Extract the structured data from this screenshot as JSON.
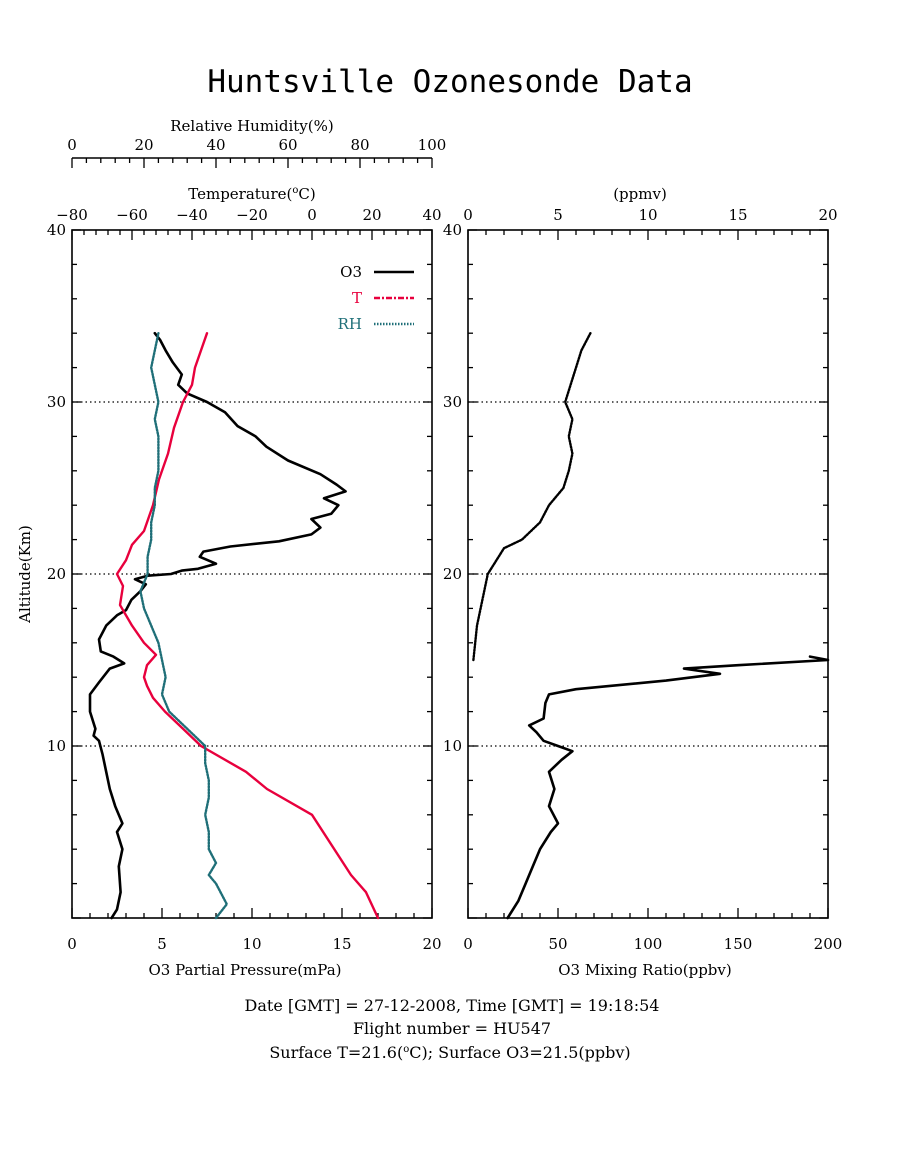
{
  "chart_data": {
    "title": "Huntsville Ozonesonde Data",
    "panels": [
      {
        "id": "left",
        "type": "line",
        "y_axis": {
          "label": "Altitude(Km)",
          "range": [
            0,
            40
          ],
          "ticks": [
            10,
            20,
            30,
            40
          ]
        },
        "x_axes": [
          {
            "position": "bottom",
            "label": "O3 Partial Pressure(mPa)",
            "range": [
              0,
              20
            ],
            "ticks": [
              0,
              5,
              10,
              15,
              20
            ]
          },
          {
            "position": "top",
            "label": "Temperature(°C)",
            "label_prefix": "Temperature(",
            "label_sup": "o",
            "label_suffix": "C)",
            "range": [
              -80,
              40
            ],
            "ticks": [
              -80,
              -60,
              -40,
              -20,
              0,
              20,
              40
            ],
            "tick_labels": [
              "−80",
              "−60",
              "−40",
              "−20",
              "0",
              "20",
              "40"
            ]
          },
          {
            "position": "top2",
            "label": "Relative Humidity(%)",
            "range": [
              0,
              100
            ],
            "ticks": [
              0,
              20,
              40,
              60,
              80,
              100
            ]
          }
        ],
        "gridlines_y": [
          10,
          20,
          30
        ],
        "legend": {
          "placement": "top-right",
          "entries": [
            {
              "name": "O3",
              "color": "#000000",
              "style": "solid"
            },
            {
              "name": "T",
              "color": "#e8003d",
              "style": "dash-dot"
            },
            {
              "name": "RH",
              "color": "#1f6f78",
              "style": "dotted"
            }
          ]
        },
        "series": [
          {
            "name": "O3",
            "axis": "bottom",
            "color": "#000000",
            "points": [
              [
                2.2,
                0
              ],
              [
                2.5,
                0.5
              ],
              [
                2.7,
                1.5
              ],
              [
                2.6,
                3
              ],
              [
                2.8,
                4
              ],
              [
                2.5,
                5
              ],
              [
                2.8,
                5.5
              ],
              [
                2.4,
                6.5
              ],
              [
                2.1,
                7.5
              ],
              [
                1.9,
                8.5
              ],
              [
                1.7,
                9.5
              ],
              [
                1.5,
                10.3
              ],
              [
                1.2,
                10.6
              ],
              [
                1.3,
                11
              ],
              [
                1.0,
                12
              ],
              [
                1.0,
                13
              ],
              [
                1.5,
                13.7
              ],
              [
                2.1,
                14.5
              ],
              [
                2.9,
                14.8
              ],
              [
                2.3,
                15.2
              ],
              [
                1.6,
                15.5
              ],
              [
                1.5,
                16.2
              ],
              [
                1.9,
                17
              ],
              [
                2.5,
                17.6
              ],
              [
                3.0,
                17.9
              ],
              [
                3.3,
                18.5
              ],
              [
                3.8,
                19
              ],
              [
                4.1,
                19.4
              ],
              [
                3.5,
                19.7
              ],
              [
                4.2,
                19.9
              ],
              [
                5.5,
                20.0
              ],
              [
                6.1,
                20.2
              ],
              [
                7.0,
                20.3
              ],
              [
                8.0,
                20.6
              ],
              [
                7.1,
                21.0
              ],
              [
                7.3,
                21.3
              ],
              [
                8.8,
                21.6
              ],
              [
                11.5,
                21.9
              ],
              [
                13.3,
                22.3
              ],
              [
                13.8,
                22.7
              ],
              [
                13.3,
                23.2
              ],
              [
                14.4,
                23.5
              ],
              [
                14.8,
                24.0
              ],
              [
                14.0,
                24.4
              ],
              [
                15.2,
                24.8
              ],
              [
                14.7,
                25.2
              ],
              [
                13.8,
                25.8
              ],
              [
                12.0,
                26.6
              ],
              [
                10.8,
                27.4
              ],
              [
                10.2,
                28.0
              ],
              [
                9.2,
                28.6
              ],
              [
                8.5,
                29.4
              ],
              [
                7.5,
                30.0
              ],
              [
                6.4,
                30.5
              ],
              [
                5.9,
                31.0
              ],
              [
                6.1,
                31.6
              ],
              [
                5.6,
                32.3
              ],
              [
                5.2,
                33.0
              ],
              [
                4.9,
                33.6
              ],
              [
                4.6,
                34.0
              ]
            ]
          },
          {
            "name": "T",
            "axis": "top",
            "color": "#e8003d",
            "points": [
              [
                22,
                0
              ],
              [
                18,
                1.5
              ],
              [
                13,
                2.5
              ],
              [
                0,
                6
              ],
              [
                -15,
                7.5
              ],
              [
                -22,
                8.5
              ],
              [
                -37,
                10
              ],
              [
                -43,
                11
              ],
              [
                -49,
                12
              ],
              [
                -53,
                12.8
              ],
              [
                -55,
                13.5
              ],
              [
                -56,
                14
              ],
              [
                -55,
                14.7
              ],
              [
                -52,
                15.3
              ],
              [
                -56,
                16
              ],
              [
                -60,
                17
              ],
              [
                -64,
                18.2
              ],
              [
                -63,
                19.3
              ],
              [
                -65,
                20
              ],
              [
                -62,
                20.8
              ],
              [
                -60,
                21.7
              ],
              [
                -56,
                22.5
              ],
              [
                -53,
                24
              ],
              [
                -51,
                25.5
              ],
              [
                -48,
                27
              ],
              [
                -46,
                28.5
              ],
              [
                -43,
                30
              ],
              [
                -40,
                31
              ],
              [
                -39,
                32
              ],
              [
                -37,
                33
              ],
              [
                -35,
                34
              ]
            ]
          },
          {
            "name": "RH",
            "axis": "top2",
            "color": "#1f6f78",
            "points": [
              [
                40,
                0
              ],
              [
                43,
                0.8
              ],
              [
                40,
                2
              ],
              [
                38,
                2.5
              ],
              [
                40,
                3.2
              ],
              [
                38,
                4
              ],
              [
                38,
                5
              ],
              [
                37,
                6
              ],
              [
                38,
                7
              ],
              [
                38,
                8
              ],
              [
                37,
                9
              ],
              [
                37,
                10
              ],
              [
                32,
                11
              ],
              [
                27,
                12
              ],
              [
                25,
                13
              ],
              [
                26,
                14
              ],
              [
                25,
                15
              ],
              [
                24,
                16
              ],
              [
                22,
                17
              ],
              [
                20,
                18
              ],
              [
                19,
                19
              ],
              [
                21,
                20
              ],
              [
                21,
                21
              ],
              [
                22,
                22
              ],
              [
                22,
                23
              ],
              [
                23,
                24
              ],
              [
                23,
                25
              ],
              [
                24,
                26
              ],
              [
                24,
                27
              ],
              [
                24,
                28
              ],
              [
                23,
                29
              ],
              [
                24,
                30
              ],
              [
                23,
                31
              ],
              [
                22,
                32
              ],
              [
                23,
                33
              ],
              [
                24,
                34
              ]
            ]
          }
        ]
      },
      {
        "id": "right",
        "type": "line",
        "y_axis": {
          "range": [
            0,
            40
          ],
          "ticks": [
            10,
            20,
            30,
            40
          ]
        },
        "x_axes": [
          {
            "position": "bottom",
            "label": "O3 Mixing Ratio(ppbv)",
            "range": [
              0,
              200
            ],
            "ticks": [
              0,
              50,
              100,
              150,
              200
            ]
          },
          {
            "position": "top",
            "label": "(ppmv)",
            "range": [
              0,
              20
            ],
            "ticks": [
              0,
              5,
              10,
              15,
              20
            ]
          }
        ],
        "gridlines_y": [
          10,
          20,
          30
        ],
        "series": [
          {
            "name": "O3 mixing ratio (ppbv)",
            "axis": "bottom",
            "color": "#000000",
            "points": [
              [
                22,
                0
              ],
              [
                28,
                1
              ],
              [
                32,
                2
              ],
              [
                36,
                3
              ],
              [
                40,
                4
              ],
              [
                46,
                5
              ],
              [
                50,
                5.5
              ],
              [
                45,
                6.5
              ],
              [
                48,
                7.5
              ],
              [
                45,
                8.5
              ],
              [
                52,
                9.2
              ],
              [
                58,
                9.7
              ],
              [
                50,
                10
              ],
              [
                42,
                10.3
              ],
              [
                38,
                10.8
              ],
              [
                34,
                11.2
              ],
              [
                42,
                11.6
              ],
              [
                43,
                12.5
              ],
              [
                45,
                13.0
              ],
              [
                60,
                13.3
              ],
              [
                110,
                13.8
              ],
              [
                140,
                14.2
              ],
              [
                120,
                14.5
              ],
              [
                150,
                14.7
              ],
              [
                200,
                15.0
              ],
              [
                190,
                15.2
              ]
            ]
          },
          {
            "name": "O3 mixing ratio (ppmv)",
            "axis": "top",
            "color": "#000000",
            "style": "dotted",
            "points": [
              [
                0.3,
                15
              ],
              [
                0.4,
                16
              ],
              [
                0.5,
                17
              ],
              [
                0.7,
                18
              ],
              [
                0.9,
                19
              ],
              [
                1.1,
                20
              ],
              [
                1.4,
                20.5
              ],
              [
                2.0,
                21.5
              ],
              [
                3.0,
                22
              ],
              [
                4.0,
                23
              ],
              [
                4.5,
                24
              ],
              [
                5.3,
                25
              ],
              [
                5.6,
                26
              ],
              [
                5.8,
                27
              ],
              [
                5.6,
                28
              ],
              [
                5.8,
                29
              ],
              [
                5.4,
                30
              ],
              [
                5.7,
                31
              ],
              [
                6.0,
                32
              ],
              [
                6.3,
                33
              ],
              [
                6.8,
                34
              ]
            ]
          }
        ]
      }
    ],
    "footer": [
      "Date [GMT] = 27-12-2008,  Time [GMT] = 19:18:54",
      "Flight number = HU547",
      "Surface T=21.6(°C); Surface O3=21.5(ppbv)"
    ],
    "footer_surface": {
      "prefix": "Surface T=21.6(",
      "sup": "o",
      "suffix": "C); Surface O3=21.5(ppbv)"
    }
  }
}
